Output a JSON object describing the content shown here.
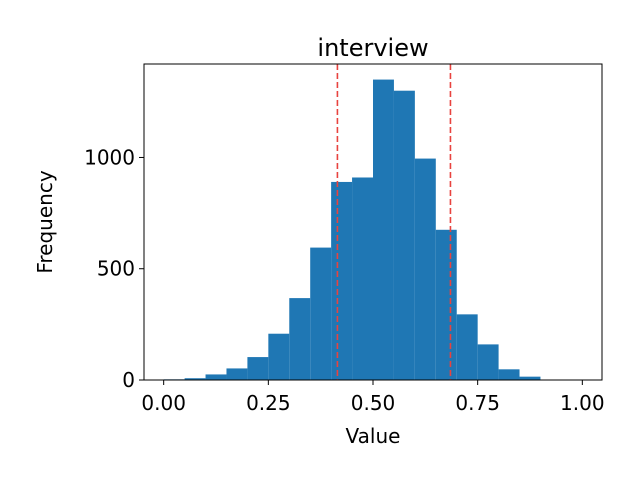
{
  "chart_data": {
    "type": "bar",
    "title": "interview",
    "xlabel": "Value",
    "ylabel": "Frequency",
    "xlim": [
      -0.047,
      1.047
    ],
    "ylim": [
      0,
      1420
    ],
    "xticks": [
      0.0,
      0.25,
      0.5,
      0.75,
      1.0
    ],
    "xtick_labels": [
      "0.00",
      "0.25",
      "0.50",
      "0.75",
      "1.00"
    ],
    "yticks": [
      0,
      500,
      1000
    ],
    "ytick_labels": [
      "0",
      "500",
      "1000"
    ],
    "bin_edges": [
      0.0,
      0.05,
      0.1,
      0.15,
      0.2,
      0.25,
      0.3,
      0.35,
      0.4,
      0.45,
      0.5,
      0.55,
      0.6,
      0.65,
      0.7,
      0.75,
      0.8,
      0.85,
      0.9,
      0.95,
      1.0
    ],
    "values": [
      3,
      8,
      25,
      52,
      103,
      208,
      368,
      595,
      890,
      910,
      1350,
      1300,
      995,
      675,
      295,
      160,
      48,
      15,
      1,
      0
    ],
    "bar_color": "#1f77b4",
    "reference_lines": [
      0.415,
      0.685
    ],
    "reference_line_color": "#e8433f",
    "reference_line_style": "dashed",
    "grid": false,
    "legend": "none"
  }
}
